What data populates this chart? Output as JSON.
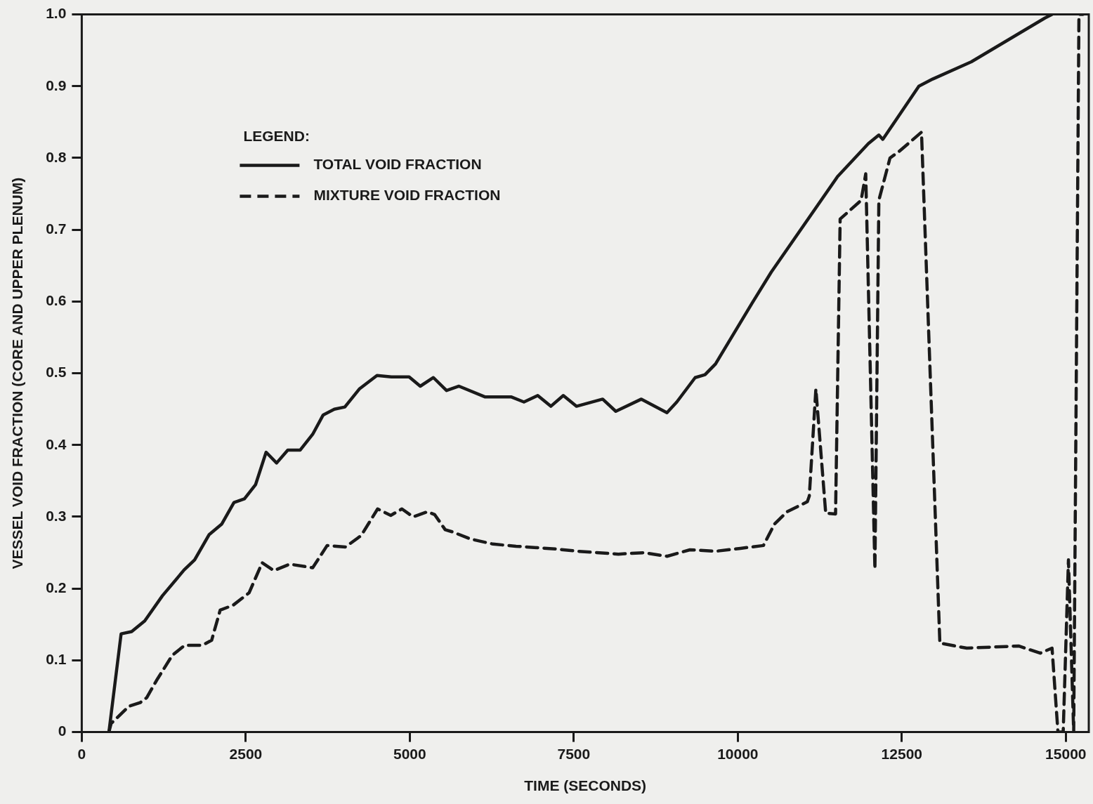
{
  "chart_data": {
    "type": "line",
    "xlabel": "TIME (SECONDS)",
    "ylabel": "VESSEL VOID FRACTION (CORE AND UPPER PLENUM)",
    "legend_title": "LEGEND:",
    "legend": "top left",
    "grid": false,
    "marker": "none",
    "xlim": [
      0,
      15350
    ],
    "xticks": [
      0,
      2500,
      5000,
      7500,
      10000,
      12500,
      15000
    ],
    "ylim": [
      0,
      1
    ],
    "yticks": [
      0,
      0.1,
      0.2,
      0.3,
      0.4,
      0.5,
      0.6,
      0.7,
      0.8,
      0.9,
      {
        "value": 1,
        "label": "1.0"
      }
    ],
    "series": [
      {
        "name": "TOTAL VOID FRACTION",
        "color": "#1a1a1a",
        "line_style": "solid",
        "x": [
          414,
          600,
          760,
          960,
          1230,
          1560,
          1720,
          1940,
          2135,
          2320,
          2480,
          2650,
          2810,
          2970,
          3140,
          3330,
          3520,
          3680,
          3850,
          4010,
          4230,
          4500,
          4720,
          4990,
          5160,
          5360,
          5560,
          5750,
          6150,
          6550,
          6740,
          6950,
          7150,
          7340,
          7540,
          7940,
          8140,
          8530,
          8920,
          9070,
          9350,
          9500,
          9660,
          10220,
          10510,
          11520,
          11990,
          12150,
          12210,
          12760,
          12970,
          13560,
          14680,
          14790
        ],
        "values": [
          0,
          0.137,
          0.14,
          0.155,
          0.19,
          0.226,
          0.24,
          0.275,
          0.29,
          0.32,
          0.325,
          0.345,
          0.39,
          0.375,
          0.393,
          0.393,
          0.415,
          0.442,
          0.45,
          0.453,
          0.478,
          0.497,
          0.495,
          0.495,
          0.482,
          0.494,
          0.476,
          0.482,
          0.467,
          0.467,
          0.46,
          0.469,
          0.454,
          0.469,
          0.454,
          0.464,
          0.447,
          0.464,
          0.445,
          0.46,
          0.494,
          0.498,
          0.513,
          0.598,
          0.641,
          0.774,
          0.82,
          0.832,
          0.826,
          0.9,
          0.91,
          0.934,
          0.995,
          1
        ]
      },
      {
        "name": "MIXTURE VOID FRACTION",
        "color": "#1a1a1a",
        "line_style": "dashed",
        "x": [
          414,
          447,
          720,
          890,
          990,
          1140,
          1380,
          1570,
          1840,
          1980,
          2110,
          2310,
          2550,
          2750,
          2930,
          3170,
          3520,
          3740,
          4020,
          4260,
          4510,
          4710,
          4880,
          5050,
          5270,
          5380,
          5540,
          5650,
          5930,
          6270,
          6620,
          6940,
          7240,
          7560,
          8180,
          8570,
          8920,
          9270,
          9660,
          10040,
          10390,
          10560,
          10750,
          11060,
          11090,
          11190,
          11340,
          11490,
          11560,
          11880,
          11950,
          12090,
          12150,
          12320,
          12470,
          12800,
          13080,
          13490,
          14280,
          14610,
          14790,
          14880,
          14960,
          15040,
          15120,
          15200,
          15260
        ],
        "values": [
          0,
          0.012,
          0.036,
          0.041,
          0.048,
          0.072,
          0.107,
          0.121,
          0.121,
          0.128,
          0.17,
          0.177,
          0.194,
          0.236,
          0.225,
          0.234,
          0.229,
          0.26,
          0.258,
          0.274,
          0.311,
          0.302,
          0.311,
          0.3,
          0.307,
          0.303,
          0.282,
          0.279,
          0.269,
          0.262,
          0.259,
          0.257,
          0.255,
          0.252,
          0.248,
          0.25,
          0.245,
          0.254,
          0.252,
          0.256,
          0.26,
          0.29,
          0.307,
          0.321,
          0.329,
          0.478,
          0.305,
          0.304,
          0.715,
          0.741,
          0.778,
          0.227,
          0.741,
          0.8,
          0.81,
          0.836,
          0.124,
          0.117,
          0.12,
          0.11,
          0.117,
          0,
          0,
          0.24,
          0,
          1,
          1
        ]
      }
    ]
  }
}
